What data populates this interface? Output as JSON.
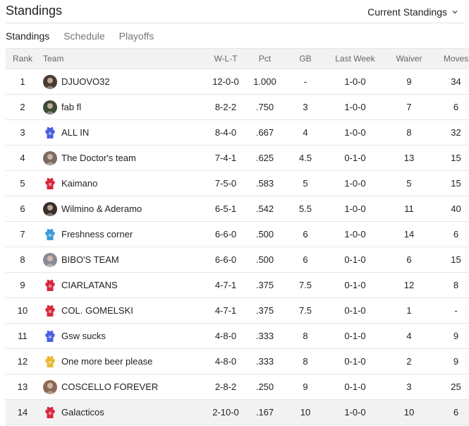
{
  "header": {
    "title": "Standings",
    "view_select": "Current Standings",
    "dropdown_icon": "chevron-down-icon"
  },
  "tabs": [
    {
      "label": "Standings",
      "active": true
    },
    {
      "label": "Schedule",
      "active": false
    },
    {
      "label": "Playoffs",
      "active": false
    }
  ],
  "table": {
    "columns": {
      "rank": "Rank",
      "team": "Team",
      "wlt": "W-L-T",
      "pct": "Pct",
      "gb": "GB",
      "last_week": "Last Week",
      "waiver": "Waiver",
      "moves": "Moves"
    },
    "rows": [
      {
        "rank": "1",
        "team": "DJUOVO32",
        "wlt": "12-0-0",
        "pct": "1.000",
        "gb": "-",
        "last_week": "1-0-0",
        "waiver": "9",
        "moves": "34",
        "avatar": "photo",
        "color": "#4a3a30"
      },
      {
        "rank": "2",
        "team": "fab fl",
        "wlt": "8-2-2",
        "pct": ".750",
        "gb": "3",
        "last_week": "1-0-0",
        "waiver": "7",
        "moves": "6",
        "avatar": "photo",
        "color": "#3e4a36"
      },
      {
        "rank": "3",
        "team": "ALL IN",
        "wlt": "8-4-0",
        "pct": ".667",
        "gb": "4",
        "last_week": "1-0-0",
        "waiver": "8",
        "moves": "32",
        "avatar": "jersey",
        "color": "#4a5fe0"
      },
      {
        "rank": "4",
        "team": "The Doctor's team",
        "wlt": "7-4-1",
        "pct": ".625",
        "gb": "4.5",
        "last_week": "0-1-0",
        "waiver": "13",
        "moves": "15",
        "avatar": "photo",
        "color": "#7a6a62"
      },
      {
        "rank": "5",
        "team": "Kaimano",
        "wlt": "7-5-0",
        "pct": ".583",
        "gb": "5",
        "last_week": "1-0-0",
        "waiver": "5",
        "moves": "15",
        "avatar": "jersey",
        "color": "#d8283c"
      },
      {
        "rank": "6",
        "team": "Wilmino & Aderamo",
        "wlt": "6-5-1",
        "pct": ".542",
        "gb": "5.5",
        "last_week": "1-0-0",
        "waiver": "11",
        "moves": "40",
        "avatar": "photo",
        "color": "#3a2e28"
      },
      {
        "rank": "7",
        "team": "Freshness corner",
        "wlt": "6-6-0",
        "pct": ".500",
        "gb": "6",
        "last_week": "1-0-0",
        "waiver": "14",
        "moves": "6",
        "avatar": "jersey",
        "color": "#3a9ad8"
      },
      {
        "rank": "8",
        "team": "BIBO'S TEAM",
        "wlt": "6-6-0",
        "pct": ".500",
        "gb": "6",
        "last_week": "0-1-0",
        "waiver": "6",
        "moves": "15",
        "avatar": "photo",
        "color": "#8a8a98"
      },
      {
        "rank": "9",
        "team": "CIARLATANS",
        "wlt": "4-7-1",
        "pct": ".375",
        "gb": "7.5",
        "last_week": "0-1-0",
        "waiver": "12",
        "moves": "8",
        "avatar": "jersey",
        "color": "#d8283c"
      },
      {
        "rank": "10",
        "team": "COL. GOMELSKI",
        "wlt": "4-7-1",
        "pct": ".375",
        "gb": "7.5",
        "last_week": "0-1-0",
        "waiver": "1",
        "moves": "-",
        "avatar": "jersey",
        "color": "#d8283c"
      },
      {
        "rank": "11",
        "team": "Gsw sucks",
        "wlt": "4-8-0",
        "pct": ".333",
        "gb": "8",
        "last_week": "0-1-0",
        "waiver": "4",
        "moves": "9",
        "avatar": "jersey",
        "color": "#4a5fe0"
      },
      {
        "rank": "12",
        "team": "One more beer please",
        "wlt": "4-8-0",
        "pct": ".333",
        "gb": "8",
        "last_week": "0-1-0",
        "waiver": "2",
        "moves": "9",
        "avatar": "jersey",
        "color": "#e8b830"
      },
      {
        "rank": "13",
        "team": "COSCELLO FOREVER",
        "wlt": "2-8-2",
        "pct": ".250",
        "gb": "9",
        "last_week": "0-1-0",
        "waiver": "3",
        "moves": "25",
        "avatar": "photo",
        "color": "#8a6a52"
      },
      {
        "rank": "14",
        "team": "Galacticos",
        "wlt": "2-10-0",
        "pct": ".167",
        "gb": "10",
        "last_week": "1-0-0",
        "waiver": "10",
        "moves": "6",
        "avatar": "jersey",
        "color": "#d8283c"
      }
    ]
  }
}
